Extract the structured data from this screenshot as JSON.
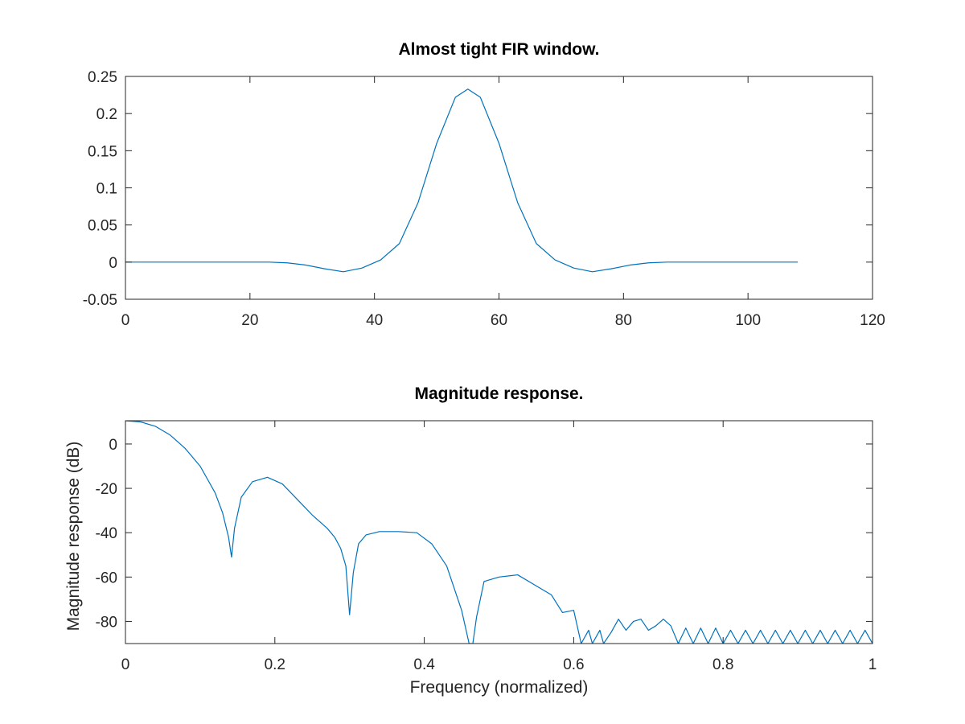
{
  "chart_data": [
    {
      "type": "line",
      "title": "Almost tight FIR window.",
      "xlabel": "",
      "ylabel": "",
      "xlim": [
        0,
        120
      ],
      "ylim": [
        -0.05,
        0.25
      ],
      "xticks": [
        0,
        20,
        40,
        60,
        80,
        100,
        120
      ],
      "xtick_labels": [
        "0",
        "20",
        "40",
        "60",
        "80",
        "100",
        "120"
      ],
      "yticks": [
        -0.05,
        0,
        0.05,
        0.1,
        0.15,
        0.2,
        0.25
      ],
      "ytick_labels": [
        "-0.05",
        "0",
        "0.05",
        "0.1",
        "0.15",
        "0.2",
        "0.25"
      ],
      "grid": false,
      "series_color": "#0072BD",
      "series": [
        {
          "x": [
            0,
            10,
            20,
            23,
            26,
            29,
            32,
            35,
            38,
            41,
            44,
            47,
            50,
            53,
            55,
            57,
            60,
            63,
            66,
            69,
            72,
            75,
            78,
            81,
            84,
            87,
            90,
            100,
            108
          ],
          "values": [
            0,
            0,
            0,
            0,
            -0.001,
            -0.004,
            -0.009,
            -0.013,
            -0.008,
            0.003,
            0.025,
            0.08,
            0.16,
            0.222,
            0.233,
            0.222,
            0.16,
            0.08,
            0.025,
            0.003,
            -0.008,
            -0.013,
            -0.009,
            -0.004,
            -0.001,
            0,
            0,
            0,
            0
          ]
        }
      ]
    },
    {
      "type": "line",
      "title": "Magnitude response.",
      "xlabel": "Frequency (normalized)",
      "ylabel": "Magnitude response (dB)",
      "xlim": [
        0,
        1
      ],
      "ylim": [
        -90,
        10.5
      ],
      "xticks": [
        0,
        0.2,
        0.4,
        0.6,
        0.8,
        1
      ],
      "xtick_labels": [
        "0",
        "0.2",
        "0.4",
        "0.6",
        "0.8",
        "1"
      ],
      "yticks": [
        -80,
        -60,
        -40,
        -20,
        0
      ],
      "ytick_labels": [
        "-80",
        "-60",
        "-40",
        "-20",
        "0"
      ],
      "grid": false,
      "series_color": "#0072BD",
      "series": [
        {
          "x": [
            0,
            0.02,
            0.04,
            0.06,
            0.08,
            0.1,
            0.12,
            0.13,
            0.138,
            0.142,
            0.146,
            0.155,
            0.17,
            0.19,
            0.21,
            0.23,
            0.25,
            0.27,
            0.28,
            0.288,
            0.295,
            0.3,
            0.305,
            0.312,
            0.322,
            0.34,
            0.365,
            0.39,
            0.41,
            0.43,
            0.45,
            0.46,
            0.465,
            0.47,
            0.48,
            0.5,
            0.525,
            0.55,
            0.57,
            0.585,
            0.6,
            0.61,
            0.62,
            0.625,
            0.635,
            0.64,
            0.65,
            0.66,
            0.67,
            0.68,
            0.69,
            0.7,
            0.71,
            0.72,
            0.73,
            0.74,
            0.75,
            0.76,
            0.77,
            0.78,
            0.79,
            0.8,
            0.81,
            0.82,
            0.83,
            0.84,
            0.85,
            0.86,
            0.87,
            0.88,
            0.89,
            0.9,
            0.91,
            0.92,
            0.93,
            0.94,
            0.95,
            0.96,
            0.97,
            0.98,
            0.99,
            1.0
          ],
          "values": [
            10.5,
            10,
            8,
            4,
            -2,
            -10,
            -22,
            -31,
            -42,
            -51,
            -38,
            -24,
            -17,
            -15,
            -18,
            -25,
            -32,
            -38,
            -42,
            -47,
            -55,
            -77,
            -58,
            -45,
            -41,
            -39.5,
            -39.5,
            -40,
            -45,
            -55,
            -75,
            -90,
            -90,
            -78,
            -62,
            -60,
            -59,
            -64,
            -68,
            -76,
            -75,
            -90,
            -84,
            -90,
            -84,
            -90,
            -85,
            -79,
            -84,
            -80,
            -79,
            -84,
            -82,
            -79,
            -82,
            -90,
            -83,
            -90,
            -83,
            -90,
            -83,
            -90,
            -84,
            -90,
            -84,
            -90,
            -84,
            -90,
            -84,
            -90,
            -84,
            -90,
            -84,
            -90,
            -84,
            -90,
            -84,
            -90,
            -84,
            -90,
            -84,
            -90
          ]
        }
      ]
    }
  ]
}
